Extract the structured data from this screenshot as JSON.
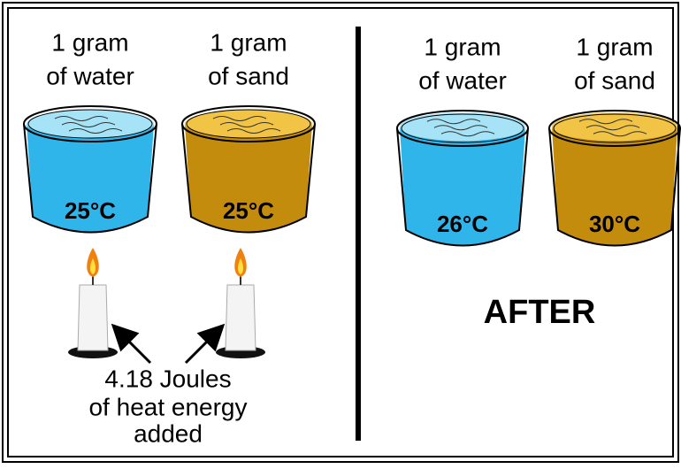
{
  "before": {
    "beakers": [
      {
        "label": [
          "1 gram",
          "of water"
        ],
        "temperature": "25°C"
      },
      {
        "label": [
          "1 gram",
          "of sand"
        ],
        "temperature": "25°C"
      }
    ],
    "note": [
      "4.18 Joules",
      "of heat energy",
      "added"
    ]
  },
  "after": {
    "beakers": [
      {
        "label": [
          "1 gram",
          "of water"
        ],
        "temperature": "26°C"
      },
      {
        "label": [
          "1 gram",
          "of sand"
        ],
        "temperature": "30°C"
      }
    ],
    "caption": "AFTER"
  }
}
